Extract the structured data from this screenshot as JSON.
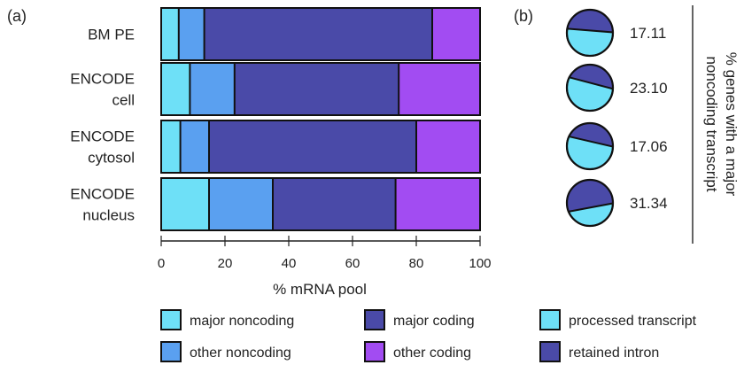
{
  "colors": {
    "major_noncoding": "#6ee0f7",
    "other_noncoding": "#5aa0f0",
    "major_coding": "#4a4aa8",
    "other_coding": "#a24cf2",
    "processed_transcript": "#6ee0f7",
    "retained_intron": "#4a4aa8",
    "stroke": "#111111"
  },
  "panel_a": {
    "label": "(a)"
  },
  "panel_b": {
    "label": "(b)"
  },
  "chart_data": [
    {
      "type": "bar",
      "orientation": "horizontal",
      "stacked": true,
      "categories": [
        [
          "BM PE"
        ],
        [
          "ENCODE",
          "cell"
        ],
        [
          "ENCODE",
          "cytosol"
        ],
        [
          "ENCODE",
          "nucleus"
        ]
      ],
      "series": [
        {
          "name": "major noncoding",
          "color": "#6ee0f7",
          "values": [
            5.5,
            9,
            6,
            15
          ]
        },
        {
          "name": "other noncoding",
          "color": "#5aa0f0",
          "values": [
            8,
            14,
            9,
            20
          ]
        },
        {
          "name": "major coding",
          "color": "#4a4aa8",
          "values": [
            71.5,
            51.5,
            65,
            38.5
          ]
        },
        {
          "name": "other coding",
          "color": "#a24cf2",
          "values": [
            15,
            25.5,
            20,
            26.5
          ]
        }
      ],
      "xlabel": "% mRNA pool",
      "xlim": [
        0,
        100
      ],
      "xticks": [
        "0",
        "20",
        "40",
        "60",
        "80",
        "100"
      ]
    },
    {
      "type": "pie",
      "series": [
        {
          "name": "processed transcript",
          "color": "#6ee0f7"
        },
        {
          "name": "retained intron",
          "color": "#4a4aa8"
        }
      ],
      "pies": [
        {
          "value_label": "17.11",
          "fractions": {
            "processed transcript": 0.55,
            "retained intron": 0.45
          }
        },
        {
          "value_label": "23.10",
          "fractions": {
            "processed transcript": 0.6,
            "retained intron": 0.4
          }
        },
        {
          "value_label": "17.06",
          "fractions": {
            "processed transcript": 0.6,
            "retained intron": 0.4
          }
        },
        {
          "value_label": "31.34",
          "fractions": {
            "processed transcript": 0.4,
            "retained intron": 0.6
          }
        }
      ],
      "ylabel": [
        "% genes with a major",
        "noncoding transcript"
      ]
    }
  ],
  "legend": [
    {
      "label": "major noncoding",
      "color": "#6ee0f7"
    },
    {
      "label": "other noncoding",
      "color": "#5aa0f0"
    },
    {
      "label": "major coding",
      "color": "#4a4aa8"
    },
    {
      "label": "other coding",
      "color": "#a24cf2"
    },
    {
      "label": "processed transcript",
      "color": "#6ee0f7"
    },
    {
      "label": "retained intron",
      "color": "#4a4aa8"
    }
  ]
}
